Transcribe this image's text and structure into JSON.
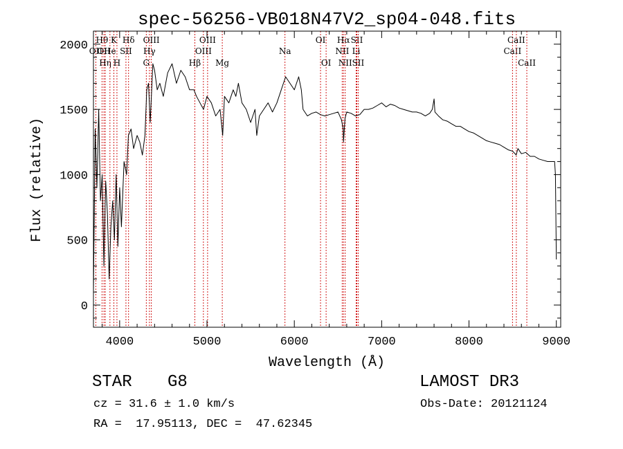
{
  "chart_data": {
    "type": "line",
    "title": "spec-56256-VB018N47V2_sp04-048.fits",
    "xlabel": "Wavelength (Å)",
    "ylabel": "Flux (relative)",
    "xlim": [
      3700,
      9050
    ],
    "ylim": [
      -170,
      2100
    ],
    "xticks": [
      4000,
      5000,
      6000,
      7000,
      8000,
      9000
    ],
    "yticks": [
      0,
      500,
      1000,
      1500,
      2000
    ],
    "grid": false,
    "line_color": "#000000",
    "marker_color": "#cc0000",
    "series": [
      {
        "name": "spectrum",
        "x": [
          3700,
          3720,
          3740,
          3760,
          3780,
          3800,
          3820,
          3840,
          3860,
          3880,
          3900,
          3920,
          3940,
          3960,
          3980,
          4000,
          4020,
          4050,
          4080,
          4100,
          4130,
          4160,
          4200,
          4230,
          4260,
          4290,
          4310,
          4330,
          4350,
          4380,
          4400,
          4430,
          4460,
          4500,
          4550,
          4600,
          4650,
          4700,
          4750,
          4800,
          4850,
          4880,
          4920,
          4960,
          5000,
          5050,
          5100,
          5150,
          5180,
          5200,
          5250,
          5300,
          5330,
          5360,
          5400,
          5450,
          5500,
          5550,
          5570,
          5600,
          5650,
          5700,
          5750,
          5800,
          5850,
          5900,
          5950,
          6000,
          6050,
          6080,
          6100,
          6150,
          6200,
          6250,
          6300,
          6350,
          6400,
          6450,
          6500,
          6540,
          6560,
          6563,
          6580,
          6600,
          6650,
          6700,
          6750,
          6800,
          6850,
          6900,
          6950,
          7000,
          7050,
          7100,
          7150,
          7200,
          7250,
          7300,
          7350,
          7400,
          7450,
          7500,
          7550,
          7580,
          7600,
          7610,
          7650,
          7700,
          7750,
          7800,
          7850,
          7900,
          7950,
          8000,
          8050,
          8100,
          8150,
          8200,
          8250,
          8300,
          8350,
          8400,
          8450,
          8500,
          8540,
          8560,
          8600,
          8650,
          8700,
          8750,
          8800,
          8850,
          8900,
          8950,
          8980,
          8990,
          9000
        ],
        "y": [
          100,
          1350,
          900,
          1500,
          800,
          1000,
          300,
          950,
          700,
          200,
          600,
          800,
          500,
          1000,
          450,
          900,
          600,
          1100,
          1000,
          1300,
          1350,
          1200,
          1300,
          1250,
          1150,
          1300,
          1650,
          1700,
          1400,
          1850,
          1800,
          1650,
          1700,
          1600,
          1780,
          1850,
          1700,
          1800,
          1750,
          1650,
          1650,
          1600,
          1550,
          1500,
          1600,
          1550,
          1450,
          1500,
          1300,
          1600,
          1550,
          1650,
          1600,
          1700,
          1550,
          1500,
          1400,
          1500,
          1300,
          1450,
          1500,
          1550,
          1480,
          1550,
          1650,
          1750,
          1700,
          1650,
          1750,
          1650,
          1500,
          1450,
          1470,
          1480,
          1460,
          1450,
          1460,
          1470,
          1480,
          1420,
          1350,
          1250,
          1430,
          1480,
          1470,
          1450,
          1460,
          1500,
          1500,
          1510,
          1530,
          1550,
          1520,
          1540,
          1530,
          1510,
          1500,
          1490,
          1480,
          1480,
          1470,
          1450,
          1470,
          1500,
          1580,
          1480,
          1450,
          1420,
          1410,
          1390,
          1370,
          1370,
          1350,
          1330,
          1320,
          1300,
          1280,
          1260,
          1250,
          1240,
          1230,
          1210,
          1190,
          1180,
          1150,
          1200,
          1160,
          1170,
          1140,
          1140,
          1120,
          1110,
          1100,
          1100,
          1100,
          1000,
          350
        ]
      }
    ],
    "line_markers": [
      {
        "label": "OII",
        "x": 3727,
        "row": 2
      },
      {
        "label": "Hθ",
        "x": 3798,
        "row": 1
      },
      {
        "label": "OII",
        "x": 3820,
        "row": 2
      },
      {
        "label": "Hη",
        "x": 3835,
        "row": 3
      },
      {
        "label": "K",
        "x": 3934,
        "row": 1
      },
      {
        "label": "H",
        "x": 3969,
        "row": 3
      },
      {
        "label": "He",
        "x": 3889,
        "row": 2
      },
      {
        "label": "SII",
        "x": 4072,
        "row": 2
      },
      {
        "label": "Hδ",
        "x": 4102,
        "row": 1
      },
      {
        "label": "OIII",
        "x": 4363,
        "row": 1
      },
      {
        "label": "Hγ",
        "x": 4341,
        "row": 2
      },
      {
        "label": "G",
        "x": 4305,
        "row": 3
      },
      {
        "label": "Hβ",
        "x": 4861,
        "row": 3
      },
      {
        "label": "OIII",
        "x": 4959,
        "row": 2
      },
      {
        "label": "OIII",
        "x": 5007,
        "row": 1
      },
      {
        "label": "Mg",
        "x": 5175,
        "row": 3
      },
      {
        "label": "Na",
        "x": 5893,
        "row": 2
      },
      {
        "label": "OI",
        "x": 6300,
        "row": 1
      },
      {
        "label": "OI",
        "x": 6364,
        "row": 3
      },
      {
        "label": "NII",
        "x": 6548,
        "row": 2
      },
      {
        "label": "Hα",
        "x": 6563,
        "row": 1
      },
      {
        "label": "NII",
        "x": 6583,
        "row": 3
      },
      {
        "label": "SII",
        "x": 6716,
        "row": 1
      },
      {
        "label": "Li",
        "x": 6708,
        "row": 2
      },
      {
        "label": "SII",
        "x": 6731,
        "row": 3
      },
      {
        "label": "CaII",
        "x": 8498,
        "row": 2
      },
      {
        "label": "CaII",
        "x": 8542,
        "row": 1
      },
      {
        "label": "CaII",
        "x": 8662,
        "row": 3
      }
    ]
  },
  "info": {
    "object_class": "STAR",
    "subclass": "G8",
    "survey": "LAMOST DR3",
    "cz": "cz = 31.6 ± 1.0 km/s",
    "obs_date": "Obs-Date: 20121124",
    "radec": "RA =  17.95113, DEC =  47.62345"
  }
}
